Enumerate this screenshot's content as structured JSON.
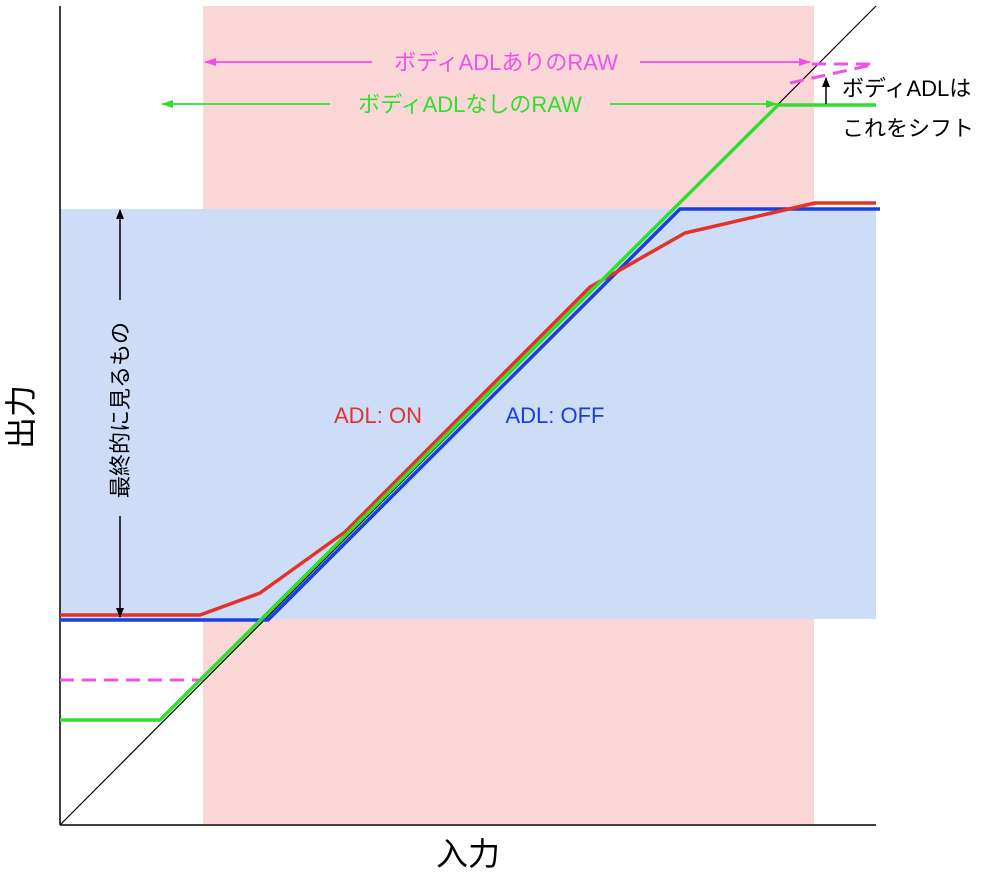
{
  "axes": {
    "x_title": "入力",
    "y_title": "出力"
  },
  "labels": {
    "raw_with_body_adl": "ボディADLありのRAW",
    "raw_without_body_adl": "ボディADLなしのRAW",
    "shift_note_line1": "ボディADLは",
    "shift_note_line2": "これをシフト",
    "final_visible": "最終的に見るもの",
    "adl_on": "ADL: ON",
    "adl_off": "ADL: OFF"
  },
  "colors": {
    "raw_range_fill": "#fbd6d6",
    "visible_range_fill": "#cddcf7",
    "adl_on": "#e53228",
    "adl_off": "#1a3fe0",
    "raw_no_adl": "#2ee02e",
    "raw_with_adl": "#f050e8",
    "identity": "#000000",
    "axis": "#000000"
  }
}
